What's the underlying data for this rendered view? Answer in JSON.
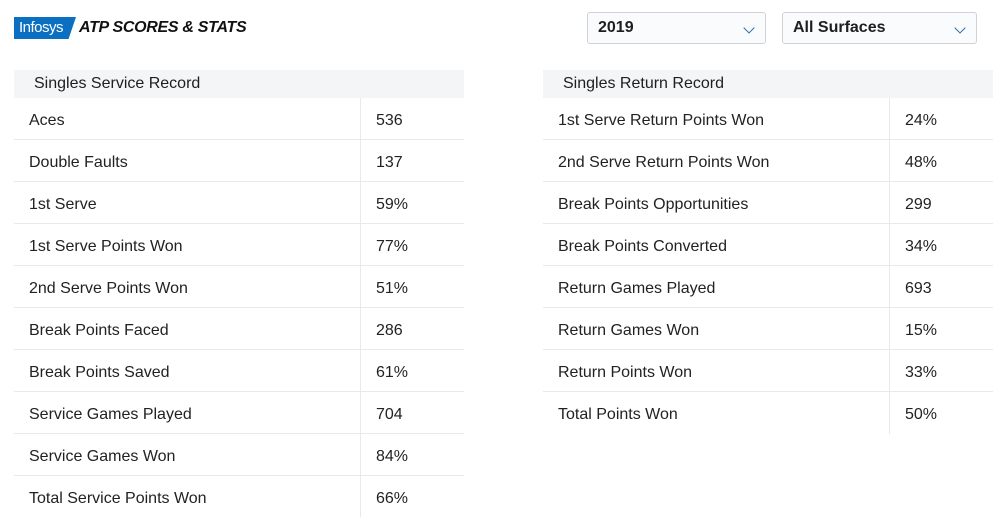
{
  "header": {
    "logo_infosys": "Infosys",
    "logo_atp": "ATP SCORES & STATS",
    "year_select": {
      "value": "2019"
    },
    "surface_select": {
      "value": "All Surfaces"
    }
  },
  "service": {
    "title": "Singles Service Record",
    "rows": [
      {
        "label": "Aces",
        "value": "536"
      },
      {
        "label": "Double Faults",
        "value": "137"
      },
      {
        "label": "1st Serve",
        "value": "59%"
      },
      {
        "label": "1st Serve Points Won",
        "value": "77%"
      },
      {
        "label": "2nd Serve Points Won",
        "value": "51%"
      },
      {
        "label": "Break Points Faced",
        "value": "286"
      },
      {
        "label": "Break Points Saved",
        "value": "61%"
      },
      {
        "label": "Service Games Played",
        "value": "704"
      },
      {
        "label": "Service Games Won",
        "value": "84%"
      },
      {
        "label": "Total Service Points Won",
        "value": "66%"
      }
    ]
  },
  "return": {
    "title": "Singles Return Record",
    "rows": [
      {
        "label": "1st Serve Return Points Won",
        "value": "24%"
      },
      {
        "label": "2nd Serve Return Points Won",
        "value": "48%"
      },
      {
        "label": "Break Points Opportunities",
        "value": "299"
      },
      {
        "label": "Break Points Converted",
        "value": "34%"
      },
      {
        "label": "Return Games Played",
        "value": "693"
      },
      {
        "label": "Return Games Won",
        "value": "15%"
      },
      {
        "label": "Return Points Won",
        "value": "33%"
      },
      {
        "label": "Total Points Won",
        "value": "50%"
      }
    ]
  }
}
